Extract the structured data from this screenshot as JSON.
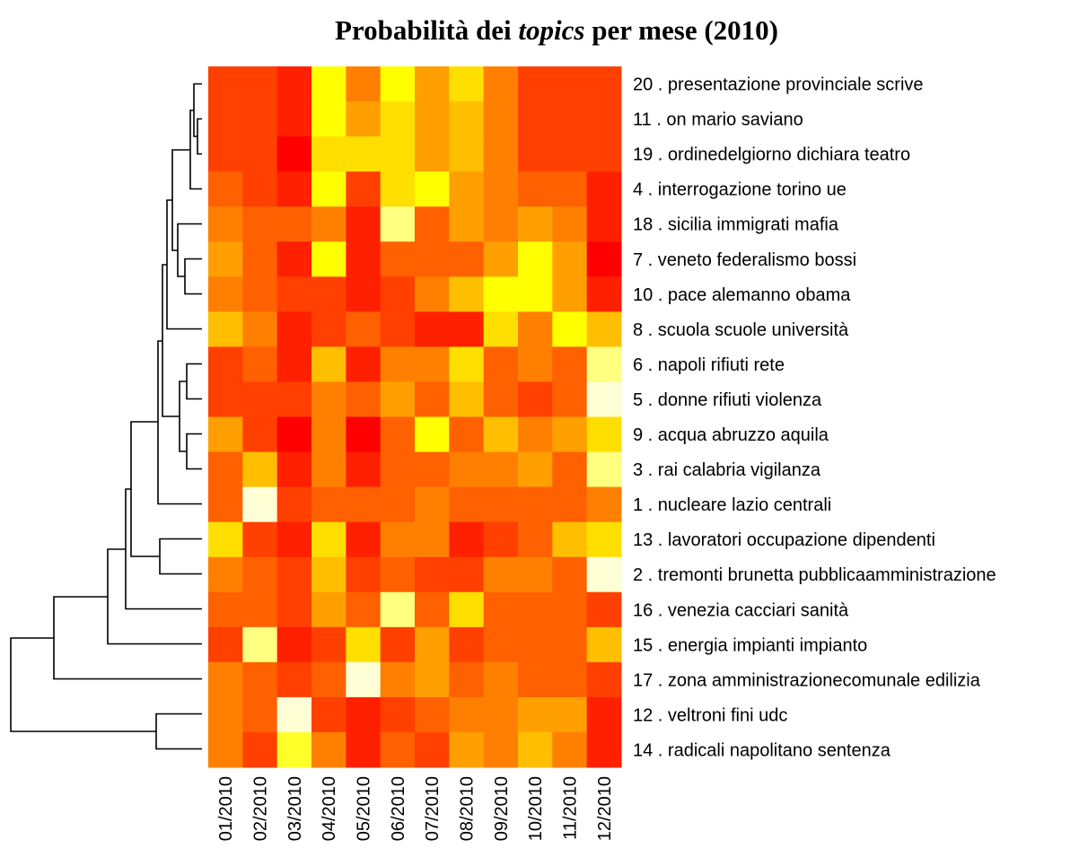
{
  "chart_data": {
    "type": "heatmap",
    "title": "Probabilità dei topics per mese (2010)",
    "title_italic": "topics",
    "rows": [
      "20 . presentazione provinciale scrive",
      "11 . on mario saviano",
      "19 . ordinedelgiorno dichiara teatro",
      "4 . interrogazione torino ue",
      "18 . sicilia immigrati mafia",
      "7 . veneto federalismo bossi",
      "10 . pace alemanno obama",
      "8 . scuola scuole università",
      "6 . napoli rifiuti rete",
      "5 . donne rifiuti violenza",
      "9 . acqua abruzzo aquila",
      "3 . rai calabria vigilanza",
      "1 . nucleare lazio centrali",
      "13 . lavoratori occupazione dipendenti",
      "2 . tremonti brunetta pubblicaamministrazione",
      "16 . venezia cacciari sanità",
      "15 . energia impianti impianto",
      "17 . zona amministrazionecomunale edilizia",
      "12 . veltroni fini udc",
      "14 . radicali napolitano sentenza"
    ],
    "columns": [
      "01/2010",
      "02/2010",
      "03/2010",
      "04/2010",
      "05/2010",
      "06/2010",
      "07/2010",
      "08/2010",
      "09/2010",
      "10/2010",
      "11/2010",
      "12/2010"
    ],
    "colors": [
      "#FF0000",
      "#FF2000",
      "#FF4000",
      "#FF6000",
      "#FF8000",
      "#FF9F00",
      "#FFBF00",
      "#FFDF00",
      "#FFFF00",
      "#FFFF2A",
      "#FFFF80",
      "#FFFFD5"
    ],
    "values": [
      [
        2,
        2,
        1,
        8,
        4,
        8,
        5,
        7,
        4,
        2,
        2,
        2
      ],
      [
        2,
        2,
        1,
        8,
        5,
        7,
        5,
        6,
        4,
        2,
        2,
        2
      ],
      [
        2,
        2,
        0,
        7,
        7,
        7,
        5,
        6,
        4,
        2,
        2,
        2
      ],
      [
        3,
        2,
        1,
        8,
        2,
        7,
        8,
        5,
        4,
        3,
        3,
        1
      ],
      [
        4,
        3,
        3,
        4,
        1,
        10,
        3,
        5,
        4,
        5,
        4,
        1
      ],
      [
        5,
        3,
        1,
        8,
        1,
        3,
        3,
        3,
        5,
        8,
        5,
        0
      ],
      [
        4,
        3,
        2,
        2,
        1,
        2,
        4,
        6,
        8,
        8,
        5,
        1
      ],
      [
        6,
        4,
        1,
        2,
        3,
        2,
        1,
        1,
        7,
        4,
        8,
        6
      ],
      [
        2,
        3,
        1,
        6,
        1,
        4,
        4,
        7,
        3,
        4,
        3,
        10
      ],
      [
        2,
        2,
        2,
        4,
        3,
        5,
        3,
        6,
        3,
        2,
        3,
        11
      ],
      [
        5,
        2,
        0,
        4,
        0,
        3,
        8,
        3,
        6,
        4,
        5,
        7
      ],
      [
        3,
        6,
        1,
        4,
        1,
        3,
        3,
        4,
        4,
        5,
        3,
        10
      ],
      [
        3,
        11,
        2,
        3,
        3,
        3,
        4,
        3,
        3,
        3,
        3,
        4
      ],
      [
        7,
        2,
        1,
        7,
        1,
        4,
        4,
        1,
        2,
        3,
        6,
        7
      ],
      [
        4,
        3,
        2,
        6,
        2,
        3,
        2,
        2,
        4,
        4,
        3,
        11
      ],
      [
        3,
        3,
        2,
        5,
        3,
        10,
        3,
        7,
        3,
        3,
        3,
        2
      ],
      [
        2,
        10,
        1,
        2,
        7,
        2,
        5,
        2,
        3,
        3,
        3,
        6
      ],
      [
        4,
        3,
        2,
        3,
        11,
        4,
        5,
        3,
        4,
        3,
        3,
        2
      ],
      [
        4,
        3,
        11,
        2,
        1,
        2,
        3,
        4,
        4,
        5,
        5,
        1
      ],
      [
        4,
        2,
        9,
        4,
        1,
        3,
        2,
        5,
        4,
        6,
        4,
        1
      ]
    ]
  }
}
